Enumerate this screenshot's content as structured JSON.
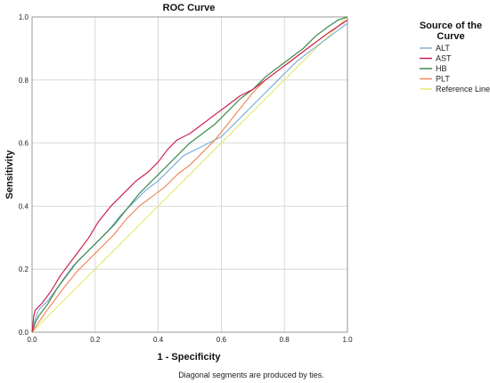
{
  "chart_data": {
    "type": "line",
    "title": "ROC Curve",
    "xlabel": "1 - Specificity",
    "ylabel": "Sensitivity",
    "xlim": [
      0,
      1
    ],
    "ylim": [
      0,
      1
    ],
    "x_ticks": [
      "0.0",
      "0.2",
      "0.4",
      "0.6",
      "0.8",
      "1.0"
    ],
    "y_ticks": [
      "0.0",
      "0.2",
      "0.4",
      "0.6",
      "0.8",
      "1.0"
    ],
    "grid": true,
    "legend_placement": "right",
    "legend_title_lines": [
      "Source of the",
      "Curve"
    ],
    "footnote": "Diagonal segments are produced by ties.",
    "series": [
      {
        "name": "ALT",
        "color": "#7fb0d8",
        "points": [
          [
            0,
            0
          ],
          [
            0.01,
            0.04
          ],
          [
            0.02,
            0.07
          ],
          [
            0.05,
            0.1
          ],
          [
            0.08,
            0.14
          ],
          [
            0.1,
            0.17
          ],
          [
            0.13,
            0.21
          ],
          [
            0.16,
            0.24
          ],
          [
            0.2,
            0.28
          ],
          [
            0.24,
            0.32
          ],
          [
            0.28,
            0.37
          ],
          [
            0.32,
            0.41
          ],
          [
            0.36,
            0.45
          ],
          [
            0.4,
            0.48
          ],
          [
            0.44,
            0.52
          ],
          [
            0.48,
            0.56
          ],
          [
            0.52,
            0.58
          ],
          [
            0.56,
            0.6
          ],
          [
            0.6,
            0.62
          ],
          [
            0.64,
            0.66
          ],
          [
            0.68,
            0.7
          ],
          [
            0.72,
            0.74
          ],
          [
            0.76,
            0.78
          ],
          [
            0.8,
            0.82
          ],
          [
            0.84,
            0.86
          ],
          [
            0.88,
            0.89
          ],
          [
            0.92,
            0.92
          ],
          [
            0.96,
            0.95
          ],
          [
            1,
            0.98
          ]
        ]
      },
      {
        "name": "AST",
        "color": "#cc2255",
        "points": [
          [
            0,
            0
          ],
          [
            0.005,
            0.05
          ],
          [
            0.01,
            0.07
          ],
          [
            0.03,
            0.09
          ],
          [
            0.06,
            0.13
          ],
          [
            0.09,
            0.18
          ],
          [
            0.12,
            0.22
          ],
          [
            0.15,
            0.26
          ],
          [
            0.18,
            0.3
          ],
          [
            0.21,
            0.35
          ],
          [
            0.25,
            0.4
          ],
          [
            0.29,
            0.44
          ],
          [
            0.33,
            0.48
          ],
          [
            0.37,
            0.51
          ],
          [
            0.4,
            0.54
          ],
          [
            0.43,
            0.58
          ],
          [
            0.46,
            0.61
          ],
          [
            0.5,
            0.63
          ],
          [
            0.54,
            0.66
          ],
          [
            0.58,
            0.69
          ],
          [
            0.62,
            0.72
          ],
          [
            0.66,
            0.75
          ],
          [
            0.7,
            0.77
          ],
          [
            0.74,
            0.8
          ],
          [
            0.78,
            0.83
          ],
          [
            0.82,
            0.86
          ],
          [
            0.86,
            0.89
          ],
          [
            0.9,
            0.92
          ],
          [
            0.94,
            0.95
          ],
          [
            0.97,
            0.97
          ],
          [
            1,
            0.99
          ]
        ]
      },
      {
        "name": "HB",
        "color": "#3d8a4a",
        "points": [
          [
            0,
            0
          ],
          [
            0.01,
            0.03
          ],
          [
            0.02,
            0.05
          ],
          [
            0.05,
            0.09
          ],
          [
            0.08,
            0.14
          ],
          [
            0.11,
            0.18
          ],
          [
            0.14,
            0.22
          ],
          [
            0.18,
            0.26
          ],
          [
            0.22,
            0.3
          ],
          [
            0.26,
            0.34
          ],
          [
            0.3,
            0.39
          ],
          [
            0.34,
            0.44
          ],
          [
            0.38,
            0.48
          ],
          [
            0.42,
            0.52
          ],
          [
            0.46,
            0.56
          ],
          [
            0.5,
            0.6
          ],
          [
            0.54,
            0.63
          ],
          [
            0.58,
            0.66
          ],
          [
            0.62,
            0.7
          ],
          [
            0.66,
            0.74
          ],
          [
            0.7,
            0.77
          ],
          [
            0.74,
            0.81
          ],
          [
            0.78,
            0.84
          ],
          [
            0.82,
            0.87
          ],
          [
            0.86,
            0.9
          ],
          [
            0.9,
            0.94
          ],
          [
            0.94,
            0.97
          ],
          [
            0.97,
            0.99
          ],
          [
            1,
            1
          ]
        ]
      },
      {
        "name": "PLT",
        "color": "#f08a5d",
        "points": [
          [
            0,
            0
          ],
          [
            0.02,
            0.03
          ],
          [
            0.04,
            0.06
          ],
          [
            0.07,
            0.1
          ],
          [
            0.1,
            0.14
          ],
          [
            0.14,
            0.19
          ],
          [
            0.18,
            0.23
          ],
          [
            0.22,
            0.27
          ],
          [
            0.26,
            0.31
          ],
          [
            0.3,
            0.36
          ],
          [
            0.34,
            0.4
          ],
          [
            0.38,
            0.43
          ],
          [
            0.42,
            0.46
          ],
          [
            0.46,
            0.5
          ],
          [
            0.5,
            0.53
          ],
          [
            0.54,
            0.57
          ],
          [
            0.58,
            0.61
          ],
          [
            0.62,
            0.66
          ],
          [
            0.66,
            0.71
          ],
          [
            0.7,
            0.76
          ],
          [
            0.74,
            0.8
          ],
          [
            0.78,
            0.83
          ],
          [
            0.82,
            0.86
          ],
          [
            0.86,
            0.89
          ],
          [
            0.9,
            0.92
          ],
          [
            0.94,
            0.95
          ],
          [
            0.97,
            0.97
          ],
          [
            1,
            0.99
          ]
        ]
      },
      {
        "name": "Reference Line",
        "color": "#e8e87a",
        "points": [
          [
            0,
            0
          ],
          [
            1,
            1
          ]
        ]
      }
    ]
  }
}
